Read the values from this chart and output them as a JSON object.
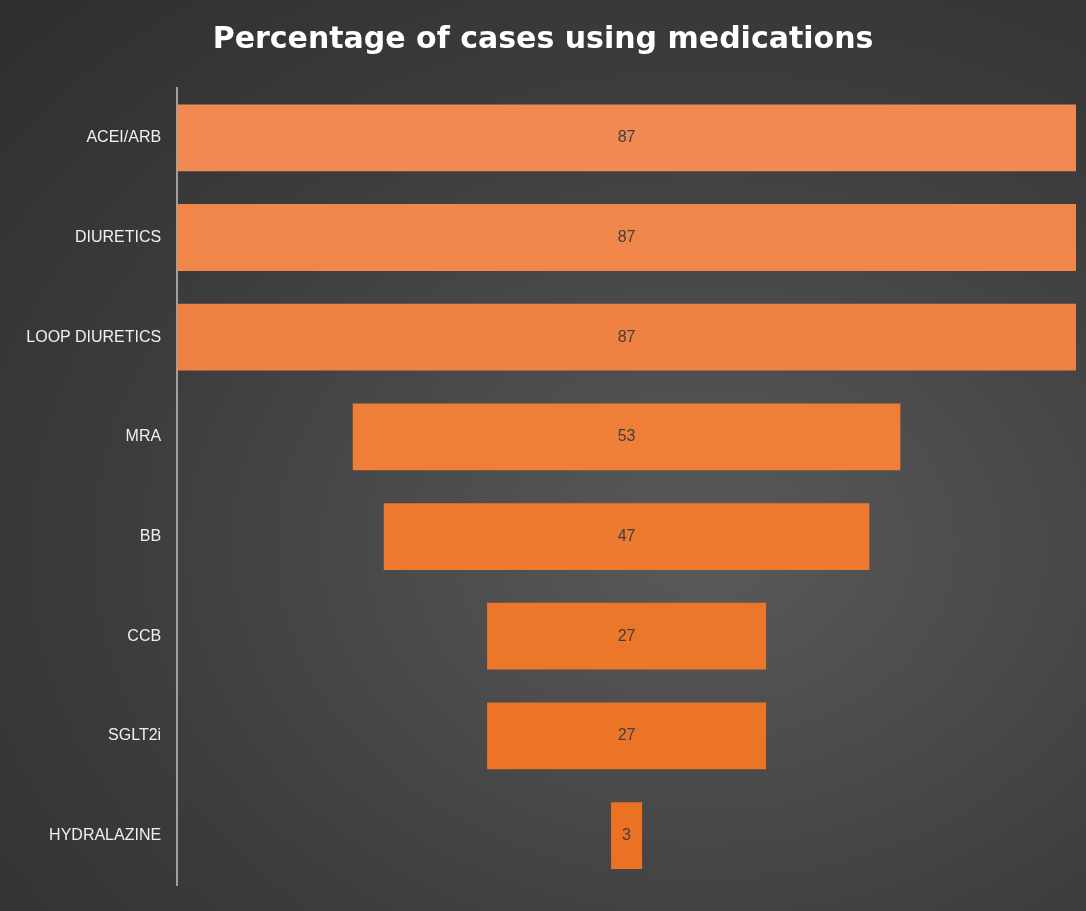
{
  "chart_data": {
    "type": "other",
    "title": "Percentage of cases using medications",
    "categories": [
      "ACEI/ARB",
      "DIURETICS",
      "LOOP DIURETICS",
      "MRA",
      "BB",
      "CCB",
      "SGLT2i",
      "HYDRALAZINE"
    ],
    "values": [
      87,
      87,
      87,
      53,
      47,
      27,
      27,
      3
    ],
    "colors": [
      "#f08a52",
      "#f0864a",
      "#ef8242",
      "#ee7e38",
      "#ed7a30",
      "#ec762a",
      "#eb7426",
      "#ea7222"
    ],
    "data_labels": true
  }
}
